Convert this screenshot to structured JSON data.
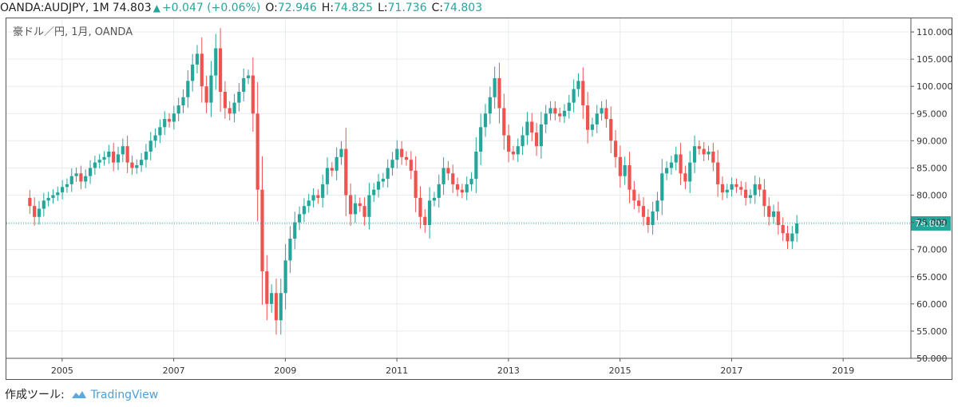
{
  "header": {
    "symbol": "OANDA:AUDJPY, 1M",
    "price": "74.803",
    "change": "+0.047 (+0.06%)",
    "open_label": "O:",
    "open": "72.946",
    "high_label": "H:",
    "high": "74.825",
    "low_label": "L:",
    "low": "71.736",
    "close_label": "C:",
    "close": "74.803"
  },
  "footer": {
    "label": "作成ツール:",
    "brand": "TradingView"
  },
  "chart_data": {
    "type": "candlestick",
    "title": "豪ドル／円, 1月, OANDA",
    "xlabel": "",
    "ylabel": "",
    "ylim": [
      50,
      112.5
    ],
    "xlim": [
      2004.0,
      2020.2
    ],
    "y_ticks": [
      "110.000",
      "105.000",
      "100.000",
      "95.000",
      "90.000",
      "85.000",
      "80.000",
      "75.000",
      "70.000",
      "65.000",
      "60.000",
      "55.000",
      "50.000"
    ],
    "x_ticks": [
      "2005",
      "2007",
      "2009",
      "2011",
      "2013",
      "2015",
      "2017",
      "2019"
    ],
    "last_price": 74.803,
    "last_price_label": "74.803",
    "grid": true,
    "up_color": "#26a69a",
    "down_color": "#ef5350",
    "closes": [
      78.0,
      76.0,
      77.5,
      79.0,
      79.5,
      80.0,
      80.5,
      81.5,
      82.0,
      83.5,
      84.0,
      82.5,
      83.5,
      85.0,
      86.0,
      86.5,
      87.0,
      88.0,
      86.0,
      87.5,
      89.0,
      86.0,
      85.0,
      85.5,
      86.5,
      88.0,
      90.0,
      91.0,
      92.5,
      94.0,
      93.5,
      95.0,
      96.5,
      98.0,
      101.0,
      104.0,
      106.0,
      100.0,
      97.0,
      102.0,
      107.0,
      99.0,
      96.0,
      95.0,
      97.0,
      99.0,
      101.5,
      102.0,
      95.0,
      81.0,
      66.0,
      60.0,
      62.0,
      57.0,
      62.0,
      68.0,
      72.0,
      75.0,
      76.5,
      78.0,
      79.0,
      80.0,
      79.5,
      82.0,
      85.0,
      84.5,
      87.0,
      88.5,
      80.0,
      76.5,
      78.5,
      78.0,
      76.0,
      80.0,
      81.0,
      82.5,
      83.0,
      85.0,
      86.5,
      88.5,
      87.0,
      86.5,
      84.5,
      79.5,
      76.0,
      74.5,
      79.0,
      79.5,
      82.0,
      85.0,
      84.0,
      82.0,
      81.0,
      80.5,
      82.0,
      83.0,
      88.0,
      92.5,
      95.0,
      98.0,
      101.5,
      96.0,
      91.0,
      88.0,
      87.5,
      89.0,
      91.0,
      93.5,
      91.5,
      89.0,
      93.0,
      95.0,
      96.0,
      95.0,
      94.5,
      95.5,
      97.0,
      99.5,
      101.0,
      96.5,
      92.0,
      93.0,
      95.0,
      96.0,
      94.0,
      90.0,
      87.0,
      83.5,
      85.5,
      81.0,
      79.0,
      78.0,
      76.0,
      74.5,
      77.0,
      79.0,
      84.0,
      85.0,
      86.0,
      87.5,
      84.0,
      82.5,
      86.0,
      89.0,
      88.5,
      87.5,
      88.0,
      86.0,
      82.0,
      80.5,
      81.0,
      82.0,
      81.5,
      81.0,
      79.5,
      80.0,
      82.0,
      81.0,
      78.0,
      76.0,
      77.0,
      74.5,
      73.0,
      71.5,
      72.946,
      74.803
    ]
  }
}
